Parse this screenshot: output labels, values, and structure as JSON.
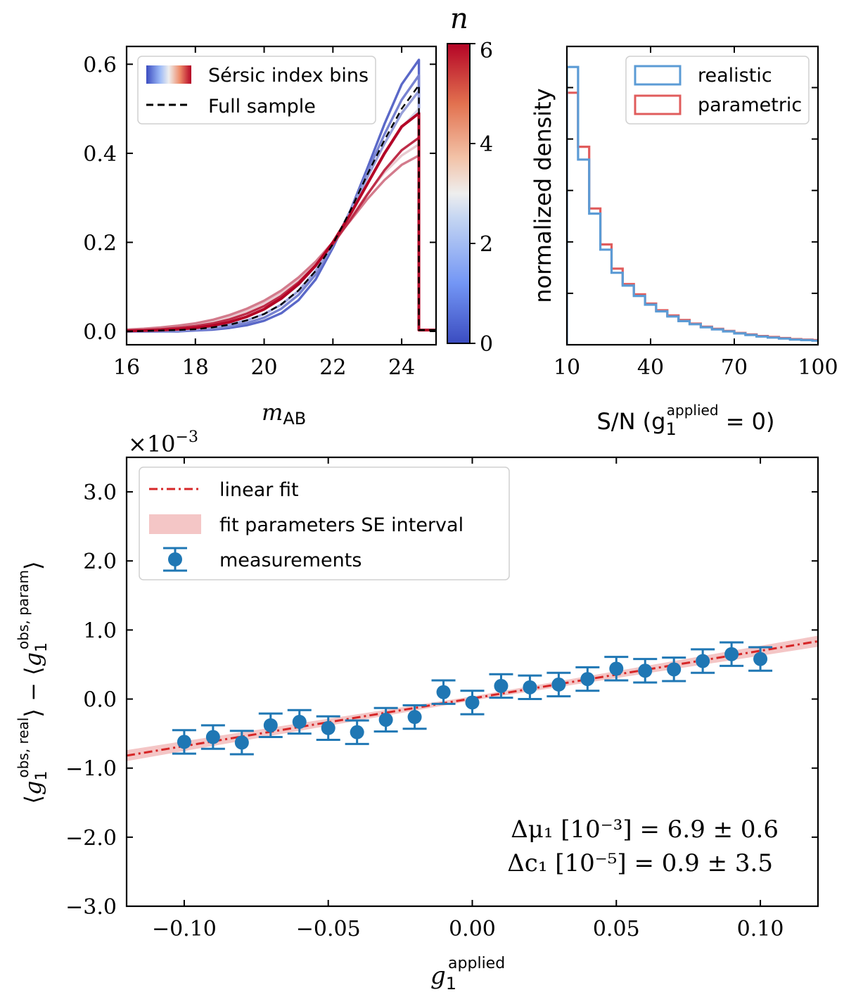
{
  "chart_data": [
    {
      "id": "magnitude",
      "type": "line",
      "title": "",
      "xlabel": "m",
      "xlabel_sub": "AB",
      "ylabel": "",
      "xlim": [
        16,
        25
      ],
      "ylim": [
        -0.03,
        0.64
      ],
      "xticks": [
        "16",
        "18",
        "20",
        "22",
        "24"
      ],
      "yticks": [
        "0.0",
        "0.2",
        "0.4",
        "0.6"
      ],
      "x": [
        16,
        16.5,
        17,
        17.5,
        18,
        18.5,
        19,
        19.5,
        20,
        20.5,
        21,
        21.5,
        22,
        22.5,
        23,
        23.5,
        24,
        24.5
      ],
      "series": [
        {
          "name": "n bin 0.5",
          "n": 0.5,
          "values": [
            0.0,
            0.0,
            0.0,
            0.0,
            0.002,
            0.004,
            0.008,
            0.014,
            0.024,
            0.041,
            0.07,
            0.117,
            0.188,
            0.27,
            0.366,
            0.466,
            0.555,
            0.61
          ]
        },
        {
          "name": "n bin 1.0",
          "n": 1.0,
          "values": [
            0.0,
            0.0,
            0.0,
            0.001,
            0.003,
            0.006,
            0.011,
            0.019,
            0.031,
            0.051,
            0.082,
            0.128,
            0.193,
            0.27,
            0.357,
            0.443,
            0.52,
            0.575
          ]
        },
        {
          "name": "n bin 1.5",
          "n": 1.5,
          "values": [
            0.0,
            0.001,
            0.002,
            0.003,
            0.005,
            0.009,
            0.015,
            0.025,
            0.039,
            0.06,
            0.091,
            0.136,
            0.196,
            0.267,
            0.346,
            0.422,
            0.49,
            0.54
          ]
        },
        {
          "name": "n bin 2.5",
          "n": 2.5,
          "values": [
            0.001,
            0.002,
            0.003,
            0.005,
            0.008,
            0.013,
            0.021,
            0.033,
            0.05,
            0.073,
            0.104,
            0.146,
            0.199,
            0.262,
            0.331,
            0.398,
            0.458,
            0.5
          ]
        },
        {
          "name": "n bin 3.5",
          "n": 3.5,
          "values": [
            0.003,
            0.005,
            0.007,
            0.01,
            0.015,
            0.022,
            0.032,
            0.046,
            0.064,
            0.087,
            0.117,
            0.155,
            0.201,
            0.254,
            0.309,
            0.357,
            0.395,
            0.42
          ]
        },
        {
          "name": "n bin 4.5",
          "n": 4.5,
          "values": [
            0.004,
            0.006,
            0.009,
            0.013,
            0.018,
            0.026,
            0.037,
            0.051,
            0.069,
            0.092,
            0.121,
            0.157,
            0.2,
            0.248,
            0.297,
            0.34,
            0.374,
            0.395
          ]
        },
        {
          "name": "n bin 5.5",
          "n": 5.5,
          "values": [
            0.002,
            0.003,
            0.005,
            0.008,
            0.012,
            0.018,
            0.027,
            0.04,
            0.057,
            0.08,
            0.11,
            0.149,
            0.196,
            0.25,
            0.307,
            0.362,
            0.407,
            0.435
          ]
        },
        {
          "name": "n bin 6.0",
          "n": 6.0,
          "values": [
            0.001,
            0.002,
            0.003,
            0.005,
            0.008,
            0.013,
            0.021,
            0.033,
            0.05,
            0.074,
            0.106,
            0.148,
            0.2,
            0.262,
            0.331,
            0.4,
            0.46,
            0.49
          ]
        },
        {
          "name": "Full sample",
          "style": "dashed",
          "values": [
            0.0,
            0.001,
            0.002,
            0.003,
            0.005,
            0.009,
            0.015,
            0.025,
            0.039,
            0.061,
            0.092,
            0.136,
            0.196,
            0.27,
            0.352,
            0.43,
            0.5,
            0.553
          ]
        }
      ],
      "cutoff_x": 24.5,
      "tail_y": 0.003,
      "legend": {
        "position": "top-left",
        "entries": [
          "Sérsic index bins",
          "Full sample"
        ]
      },
      "colorbar": {
        "label": "n",
        "min": 0,
        "max": 6,
        "ticks": [
          "0",
          "2",
          "4",
          "6"
        ],
        "colormap": [
          "#3b4cc0",
          "#f2f2f2",
          "#b40426"
        ]
      }
    },
    {
      "id": "snr",
      "type": "histogram",
      "xlabel": "S/N (g",
      "xlabel_sub": "1",
      "xlabel_sup": "applied",
      "xlabel_tail": " = 0)",
      "ylabel": "normalized density",
      "xlim": [
        10,
        100
      ],
      "ylim": [
        0,
        0.058
      ],
      "xticks": [
        "10",
        "40",
        "70",
        "100"
      ],
      "bin_edges": [
        10,
        14,
        18,
        22,
        26,
        30,
        34,
        38,
        42,
        46,
        50,
        54,
        58,
        62,
        66,
        70,
        74,
        78,
        82,
        86,
        90,
        94,
        98,
        100
      ],
      "series": [
        {
          "name": "realistic",
          "color": "#5b9bd5",
          "values": [
            0.054,
            0.036,
            0.0255,
            0.0185,
            0.014,
            0.0115,
            0.0095,
            0.0078,
            0.0065,
            0.0055,
            0.0046,
            0.004,
            0.0034,
            0.003,
            0.0026,
            0.0022,
            0.0019,
            0.0016,
            0.0014,
            0.0012,
            0.001,
            0.0009,
            0.0008
          ]
        },
        {
          "name": "parametric",
          "color": "#e05c5c",
          "values": [
            0.049,
            0.0385,
            0.0265,
            0.0195,
            0.0148,
            0.0118,
            0.0098,
            0.008,
            0.0067,
            0.0057,
            0.0048,
            0.0041,
            0.0035,
            0.0031,
            0.0027,
            0.0023,
            0.002,
            0.0017,
            0.0015,
            0.0013,
            0.0011,
            0.001,
            0.0009
          ]
        }
      ],
      "legend": {
        "position": "top-right",
        "entries": [
          "realistic",
          "parametric"
        ]
      }
    },
    {
      "id": "bias",
      "type": "scatter",
      "xlabel": "g",
      "xlabel_sub": "1",
      "xlabel_sup": "applied",
      "ylabel": "⟨g1^(obs, real)⟩ − ⟨g1^(obs, param)⟩",
      "ylabel_sup_real": "obs, real",
      "ylabel_sup_param": "obs, param",
      "scale_label": "×10",
      "scale_exp": "−3",
      "xlim": [
        -0.12,
        0.12
      ],
      "ylim": [
        -3.0,
        3.5
      ],
      "xticks": [
        "−0.10",
        "−0.05",
        "0.00",
        "0.05",
        "0.10"
      ],
      "yticks": [
        "−3.0",
        "−2.0",
        "−1.0",
        "0.0",
        "1.0",
        "2.0",
        "3.0"
      ],
      "x": [
        -0.1,
        -0.09,
        -0.08,
        -0.07,
        -0.06,
        -0.05,
        -0.04,
        -0.03,
        -0.02,
        -0.01,
        0.0,
        0.01,
        0.02,
        0.03,
        0.04,
        0.05,
        0.06,
        0.07,
        0.08,
        0.09,
        0.1
      ],
      "y": [
        -0.62,
        -0.55,
        -0.63,
        -0.38,
        -0.33,
        -0.42,
        -0.48,
        -0.3,
        -0.26,
        0.1,
        -0.05,
        0.19,
        0.17,
        0.21,
        0.29,
        0.44,
        0.41,
        0.43,
        0.55,
        0.65,
        0.58
      ],
      "yerr": [
        0.17,
        0.17,
        0.17,
        0.17,
        0.17,
        0.17,
        0.17,
        0.17,
        0.17,
        0.17,
        0.17,
        0.17,
        0.17,
        0.17,
        0.17,
        0.17,
        0.17,
        0.17,
        0.17,
        0.17,
        0.17
      ],
      "fit": {
        "slope": 6.9,
        "intercept": 0.009,
        "band_halfwidth": 0.08
      },
      "legend": {
        "position": "top-left",
        "entries": [
          "linear fit",
          "fit parameters SE interval",
          "measurements"
        ]
      },
      "annotations": [
        "Δμ₁ [10⁻³] = 6.9 ± 0.6",
        "Δc₁ [10⁻⁵] = 0.9 ± 3.5"
      ],
      "colors": {
        "points": "#1f77b4",
        "fit": "#d62728",
        "band": "#f4c6c6"
      }
    }
  ]
}
